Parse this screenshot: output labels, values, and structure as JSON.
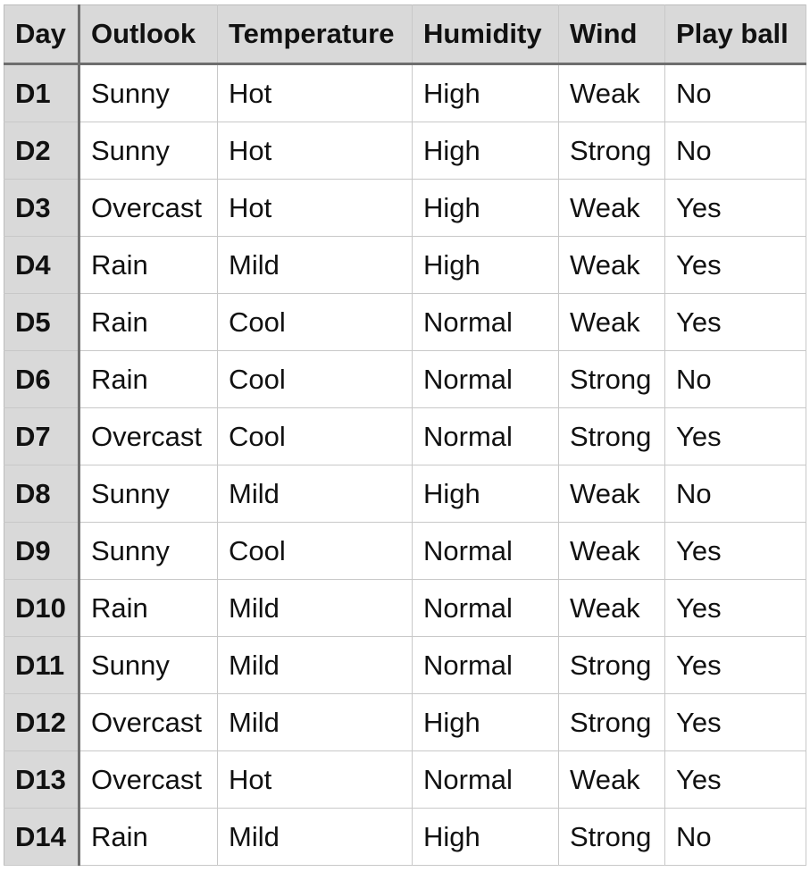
{
  "table": {
    "headers": [
      "Day",
      "Outlook",
      "Temperature",
      "Humidity",
      "Wind",
      "Play ball"
    ],
    "rows": [
      [
        "D1",
        "Sunny",
        "Hot",
        "High",
        "Weak",
        "No"
      ],
      [
        "D2",
        "Sunny",
        "Hot",
        "High",
        "Strong",
        "No"
      ],
      [
        "D3",
        "Overcast",
        "Hot",
        "High",
        "Weak",
        "Yes"
      ],
      [
        "D4",
        "Rain",
        "Mild",
        "High",
        "Weak",
        "Yes"
      ],
      [
        "D5",
        "Rain",
        "Cool",
        "Normal",
        "Weak",
        "Yes"
      ],
      [
        "D6",
        "Rain",
        "Cool",
        "Normal",
        "Strong",
        "No"
      ],
      [
        "D7",
        "Overcast",
        "Cool",
        "Normal",
        "Strong",
        "Yes"
      ],
      [
        "D8",
        "Sunny",
        "Mild",
        "High",
        "Weak",
        "No"
      ],
      [
        "D9",
        "Sunny",
        "Cool",
        "Normal",
        "Weak",
        "Yes"
      ],
      [
        "D10",
        "Rain",
        "Mild",
        "Normal",
        "Weak",
        "Yes"
      ],
      [
        "D11",
        "Sunny",
        "Mild",
        "Normal",
        "Strong",
        "Yes"
      ],
      [
        "D12",
        "Overcast",
        "Mild",
        "High",
        "Strong",
        "Yes"
      ],
      [
        "D13",
        "Overcast",
        "Hot",
        "Normal",
        "Weak",
        "Yes"
      ],
      [
        "D14",
        "Rain",
        "Mild",
        "High",
        "Strong",
        "No"
      ]
    ]
  },
  "colors": {
    "header_background": "#d9d9d9",
    "cell_background": "#ffffff",
    "grid_line": "#c8c8c8",
    "header_separator": "#6e6e6e",
    "text": "#111111"
  }
}
